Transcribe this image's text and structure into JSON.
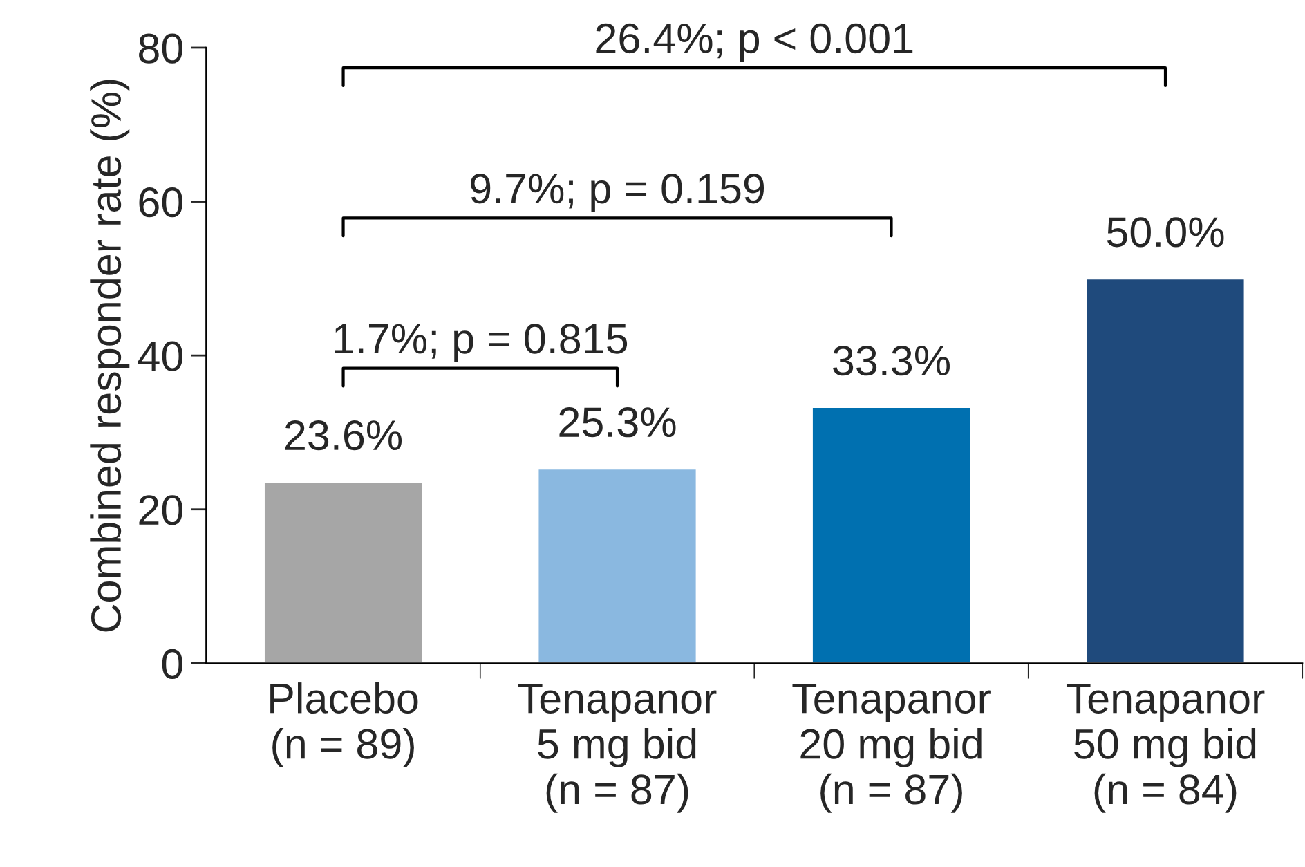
{
  "chart_data": {
    "type": "bar",
    "ylabel": "Combined responder rate (%)",
    "categories": [
      "Placebo\n(n = 89)",
      "Tenapanor\n5 mg bid\n(n = 87)",
      "Tenapanor\n20 mg bid\n(n = 87)",
      "Tenapanor\n50 mg bid\n(n = 84)"
    ],
    "values": [
      23.6,
      25.3,
      33.3,
      50.0
    ],
    "colors": [
      "#a6a6a6",
      "#8ab8e0",
      "#0070b0",
      "#1f4a7c"
    ],
    "value_labels": [
      "23.6%",
      "25.3%",
      "33.3%",
      "50.0%"
    ],
    "ylim": [
      0,
      80
    ],
    "yticks": [
      0,
      20,
      40,
      60,
      80
    ],
    "grid": false,
    "annotations": [
      "1.7%; p = 0.815",
      "9.7%; p = 0.159",
      "26.4%; p < 0.001"
    ]
  }
}
